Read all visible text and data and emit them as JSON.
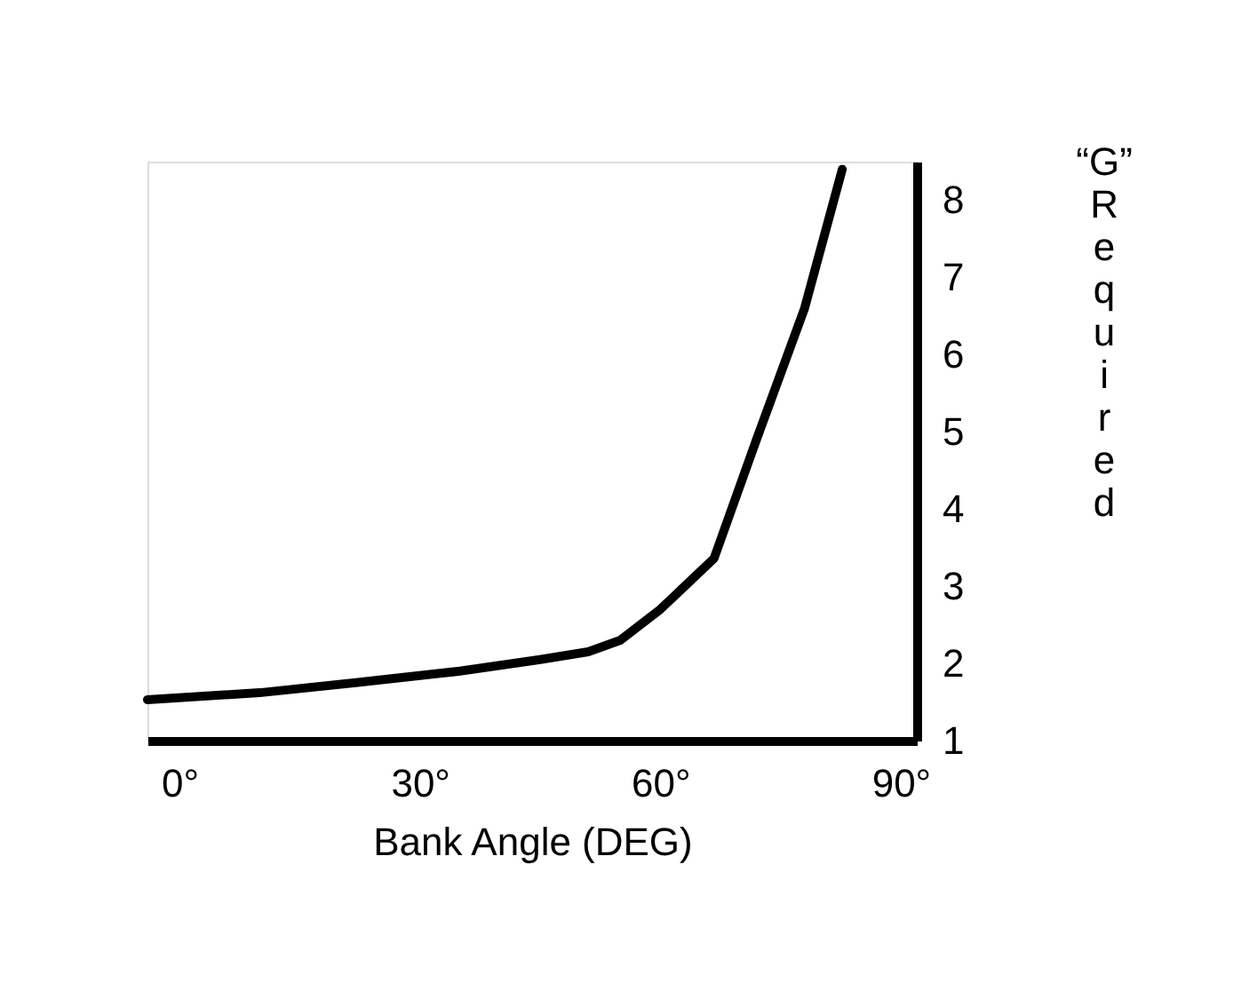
{
  "chart_data": {
    "type": "line",
    "xlabel": "Bank Angle (DEG)",
    "ylabel": "“G” Required",
    "x": [
      -4,
      10,
      22,
      35,
      45,
      51,
      55,
      60,
      66.7,
      72,
      78,
      82.7
    ],
    "series": [
      {
        "color": "#000000",
        "values": [
          1.53,
          1.62,
          1.75,
          1.9,
          2.05,
          2.15,
          2.3,
          2.7,
          3.36,
          4.9,
          6.6,
          8.4
        ]
      }
    ],
    "xlim": [
      -4,
      92
    ],
    "xticks": [
      {
        "value": 0,
        "label": "0°"
      },
      {
        "value": 30,
        "label": "30°"
      },
      {
        "value": 60,
        "label": "60°"
      },
      {
        "value": 90,
        "label": "90°"
      }
    ],
    "ylim": [
      1,
      8.5
    ],
    "yticks": [
      1,
      2,
      3,
      4,
      5,
      6,
      7,
      8
    ],
    "grid": false,
    "marker": "none",
    "line_style": "solid"
  }
}
